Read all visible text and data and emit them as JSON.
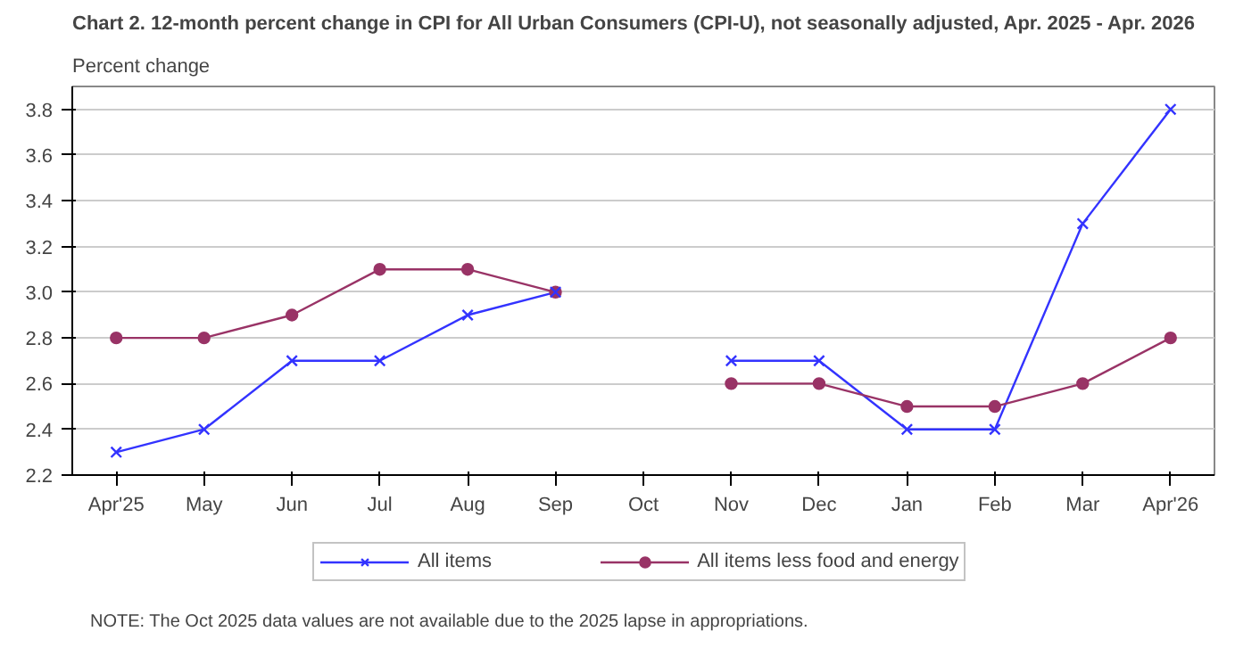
{
  "chart_data": {
    "type": "line",
    "title": "Chart 2. 12-month percent change in CPI for All Urban Consumers (CPI-U), not seasonally adjusted, Apr. 2025 - Apr. 2026",
    "ylabel": "Percent change",
    "categories": [
      "Apr'25",
      "May",
      "Jun",
      "Jul",
      "Aug",
      "Sep",
      "Oct",
      "Nov",
      "Dec",
      "Jan",
      "Feb",
      "Mar",
      "Apr'26"
    ],
    "series": [
      {
        "name": "All items",
        "color": "#3333ff",
        "marker": "cross",
        "values": [
          2.3,
          2.4,
          2.7,
          2.7,
          2.9,
          3.0,
          null,
          2.7,
          2.7,
          2.4,
          2.4,
          3.3,
          3.8
        ]
      },
      {
        "name": "All items less food and energy",
        "color": "#993366",
        "marker": "circle",
        "values": [
          2.8,
          2.8,
          2.9,
          3.1,
          3.1,
          3.0,
          null,
          2.6,
          2.6,
          2.5,
          2.5,
          2.6,
          2.8
        ]
      }
    ],
    "ylim": [
      2.2,
      3.9
    ],
    "yticks": [
      2.2,
      2.4,
      2.6,
      2.8,
      {
        "value": 3,
        "label": "3.0"
      },
      3.2,
      3.4,
      3.6,
      3.8
    ],
    "grid": "y",
    "legend": "bottom",
    "line_style": "solid",
    "annotations": [
      "NOTE: The Oct 2025 data values are not available due to the 2025 lapse in appropriations."
    ]
  }
}
